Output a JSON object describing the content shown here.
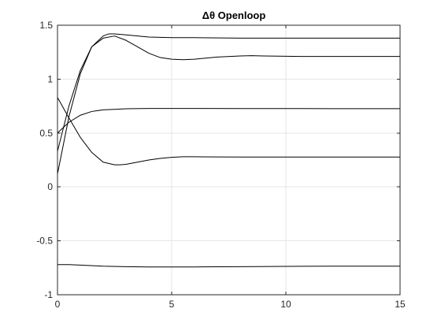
{
  "chart_data": {
    "type": "line",
    "title": "Δθ Openloop",
    "xlabel": "",
    "ylabel": "",
    "xlim": [
      0,
      15
    ],
    "ylim": [
      -1,
      1.5
    ],
    "xticks": [
      0,
      5,
      10,
      15
    ],
    "xtick_labels": [
      "0",
      "5",
      "10",
      "15"
    ],
    "yticks": [
      -1,
      -0.5,
      0,
      0.5,
      1,
      1.5
    ],
    "ytick_labels": [
      "-1",
      "-0.5",
      "0",
      "0.5",
      "1",
      "1.5"
    ],
    "grid": true,
    "line_color": "#000000",
    "series": [
      {
        "x": [
          0,
          0.5,
          1,
          1.5,
          2,
          2.25,
          2.5,
          3,
          3.5,
          4,
          5,
          6,
          8,
          10,
          12,
          15
        ],
        "y": [
          0.33,
          0.75,
          1.08,
          1.3,
          1.4,
          1.42,
          1.42,
          1.41,
          1.4,
          1.39,
          1.385,
          1.385,
          1.38,
          1.38,
          1.38,
          1.38
        ]
      },
      {
        "x": [
          0,
          0.5,
          1,
          1.5,
          2,
          2.5,
          3,
          3.5,
          4,
          4.5,
          5,
          5.5,
          6,
          6.5,
          7,
          8,
          8.5,
          9,
          10,
          11,
          12,
          15
        ],
        "y": [
          0.12,
          0.65,
          1.05,
          1.3,
          1.38,
          1.4,
          1.36,
          1.3,
          1.24,
          1.2,
          1.185,
          1.18,
          1.185,
          1.195,
          1.205,
          1.215,
          1.218,
          1.215,
          1.212,
          1.21,
          1.21,
          1.21
        ]
      },
      {
        "x": [
          0,
          0.5,
          1,
          1.5,
          2,
          2.5,
          3,
          4,
          5,
          6,
          8,
          10,
          12,
          15
        ],
        "y": [
          0.5,
          0.6,
          0.665,
          0.7,
          0.715,
          0.72,
          0.725,
          0.728,
          0.728,
          0.728,
          0.727,
          0.727,
          0.726,
          0.726
        ]
      },
      {
        "x": [
          0,
          0.5,
          1,
          1.5,
          2,
          2.5,
          2.75,
          3,
          3.5,
          4,
          4.5,
          5,
          5.5,
          6,
          7,
          8,
          10,
          12,
          15
        ],
        "y": [
          0.83,
          0.64,
          0.46,
          0.32,
          0.23,
          0.205,
          0.205,
          0.21,
          0.23,
          0.25,
          0.265,
          0.275,
          0.28,
          0.28,
          0.278,
          0.277,
          0.277,
          0.277,
          0.277
        ]
      },
      {
        "x": [
          0,
          0.5,
          1,
          2,
          3,
          4,
          5,
          6,
          8,
          10,
          12,
          15
        ],
        "y": [
          -0.72,
          -0.72,
          -0.725,
          -0.735,
          -0.74,
          -0.742,
          -0.742,
          -0.742,
          -0.74,
          -0.737,
          -0.735,
          -0.735
        ]
      }
    ]
  }
}
